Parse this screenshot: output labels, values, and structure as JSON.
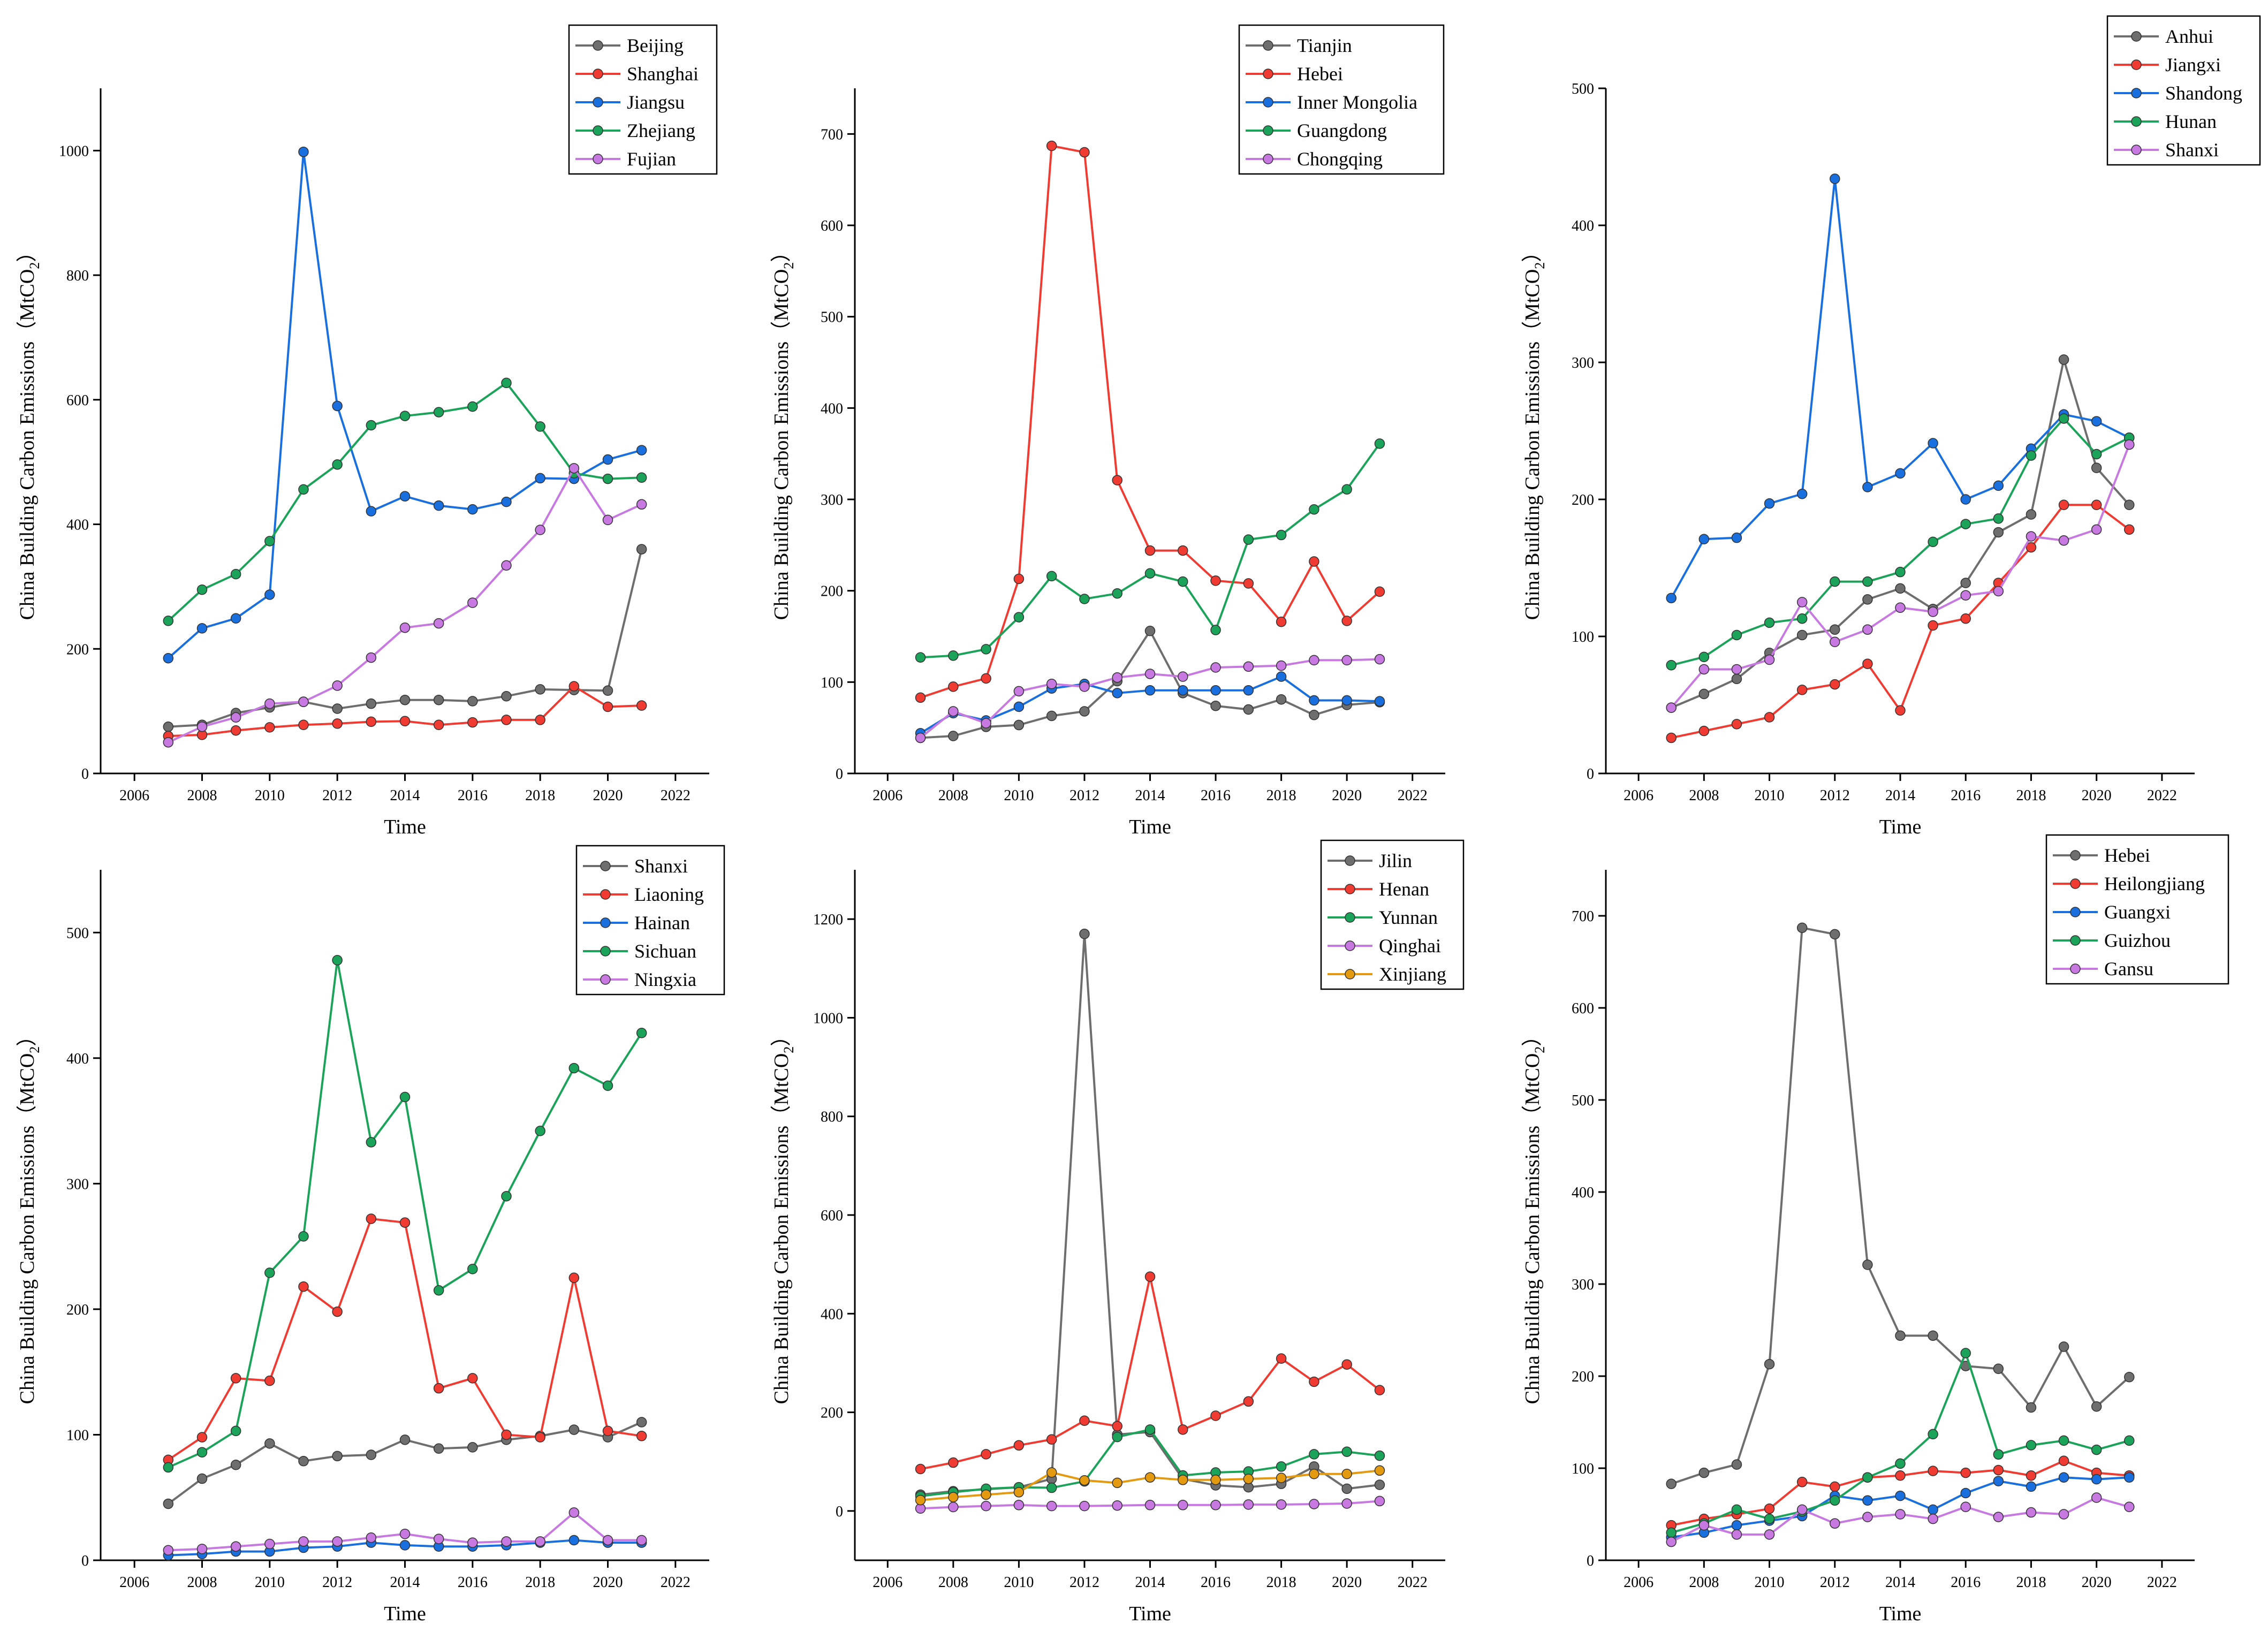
{
  "chart_data": [
    {
      "type": "line",
      "xlabel": "Time",
      "ylabel": "China Building Carbon Emissions（MtCO",
      "ylabel_sub": "2",
      "ylabel_close": "）",
      "xlim": [
        2005,
        2023
      ],
      "ylim": [
        0,
        1100
      ],
      "xticks": [
        2006,
        2008,
        2010,
        2012,
        2014,
        2016,
        2018,
        2020,
        2022
      ],
      "yticks": [
        0,
        200,
        400,
        600,
        800,
        1000
      ],
      "legend_position": "top-right",
      "x": [
        2007,
        2008,
        2009,
        2010,
        2011,
        2012,
        2013,
        2014,
        2015,
        2016,
        2017,
        2018,
        2019,
        2020,
        2021
      ],
      "series": [
        {
          "name": "Beijing",
          "color": "#6e6e6e",
          "values": [
            75,
            78,
            97,
            106,
            115,
            104,
            112,
            118,
            118,
            116,
            124,
            135,
            134,
            133,
            360
          ]
        },
        {
          "name": "Shanghai",
          "color": "#f03b32",
          "values": [
            60,
            62,
            69,
            74,
            78,
            80,
            83,
            84,
            78,
            82,
            86,
            86,
            140,
            107,
            109
          ]
        },
        {
          "name": "Jiangsu",
          "color": "#1a6fdf",
          "values": [
            185,
            233,
            249,
            287,
            998,
            590,
            421,
            445,
            430,
            424,
            436,
            474,
            473,
            504,
            519
          ]
        },
        {
          "name": "Zhejiang",
          "color": "#1ba35a",
          "values": [
            245,
            295,
            320,
            373,
            456,
            496,
            559,
            574,
            580,
            589,
            627,
            557,
            482,
            473,
            475
          ]
        },
        {
          "name": "Fujian",
          "color": "#c779e1",
          "values": [
            50,
            75,
            90,
            112,
            115,
            141,
            186,
            234,
            241,
            274,
            334,
            391,
            490,
            407,
            432
          ]
        }
      ]
    },
    {
      "type": "line",
      "xlabel": "Time",
      "ylabel": "China Building Carbon Emissions（MtCO",
      "ylabel_sub": "2",
      "ylabel_close": "）",
      "xlim": [
        2005,
        2023
      ],
      "ylim": [
        0,
        750
      ],
      "xticks": [
        2006,
        2008,
        2010,
        2012,
        2014,
        2016,
        2018,
        2020,
        2022
      ],
      "yticks": [
        0,
        100,
        200,
        300,
        400,
        500,
        600,
        700
      ],
      "legend_position": "top-right",
      "x": [
        2007,
        2008,
        2009,
        2010,
        2011,
        2012,
        2013,
        2014,
        2015,
        2016,
        2017,
        2018,
        2019,
        2020,
        2021
      ],
      "series": [
        {
          "name": "Tianjin",
          "color": "#6e6e6e",
          "values": [
            39,
            41,
            51,
            53,
            63,
            68,
            101,
            156,
            88,
            74,
            70,
            81,
            64,
            75,
            78
          ]
        },
        {
          "name": "Hebei",
          "color": "#f03b32",
          "values": [
            83,
            95,
            104,
            213,
            687,
            680,
            321,
            244,
            244,
            211,
            208,
            166,
            232,
            167,
            199
          ]
        },
        {
          "name": "Inner Mongolia",
          "color": "#1a6fdf",
          "values": [
            44,
            66,
            58,
            73,
            93,
            98,
            88,
            91,
            91,
            91,
            91,
            106,
            80,
            80,
            79
          ]
        },
        {
          "name": "Guangdong",
          "color": "#1ba35a",
          "values": [
            127,
            129,
            136,
            171,
            216,
            191,
            197,
            219,
            210,
            157,
            256,
            261,
            289,
            311,
            361
          ]
        },
        {
          "name": "Chongqing",
          "color": "#c779e1",
          "values": [
            39,
            68,
            55,
            90,
            98,
            95,
            105,
            109,
            106,
            116,
            117,
            118,
            124,
            124,
            125
          ]
        }
      ]
    },
    {
      "type": "line",
      "xlabel": "Time",
      "ylabel": "China Building Carbon Emissions（MtCO",
      "ylabel_sub": "2",
      "ylabel_close": "）",
      "xlim": [
        2005,
        2023
      ],
      "ylim": [
        0,
        500
      ],
      "xticks": [
        2006,
        2008,
        2010,
        2012,
        2014,
        2016,
        2018,
        2020,
        2022
      ],
      "yticks": [
        0,
        100,
        200,
        300,
        400,
        500
      ],
      "legend_position": "top-right",
      "x": [
        2007,
        2008,
        2009,
        2010,
        2011,
        2012,
        2013,
        2014,
        2015,
        2016,
        2017,
        2018,
        2019,
        2020,
        2021
      ],
      "series": [
        {
          "name": "Anhui",
          "color": "#6e6e6e",
          "values": [
            48,
            58,
            69,
            88,
            101,
            105,
            127,
            135,
            120,
            139,
            176,
            189,
            302,
            223,
            196
          ]
        },
        {
          "name": "Jiangxi",
          "color": "#f03b32",
          "values": [
            26,
            31,
            36,
            41,
            61,
            65,
            80,
            46,
            108,
            113,
            139,
            165,
            196,
            196,
            178
          ]
        },
        {
          "name": "Shandong",
          "color": "#1a6fdf",
          "values": [
            128,
            171,
            172,
            197,
            204,
            434,
            209,
            219,
            241,
            200,
            210,
            237,
            262,
            257,
            245
          ]
        },
        {
          "name": "Hunan",
          "color": "#1ba35a",
          "values": [
            79,
            85,
            101,
            110,
            113,
            140,
            140,
            147,
            169,
            182,
            186,
            232,
            259,
            233,
            245
          ]
        },
        {
          "name": "Shanxi",
          "color": "#c779e1",
          "values": [
            48,
            76,
            76,
            83,
            125,
            96,
            105,
            121,
            118,
            130,
            133,
            173,
            170,
            178,
            240
          ]
        }
      ]
    },
    {
      "type": "line",
      "xlabel": "Time",
      "ylabel": "China Building Carbon Emissions（MtCO",
      "ylabel_sub": "2",
      "ylabel_close": "）",
      "xlim": [
        2005,
        2023
      ],
      "ylim": [
        0,
        550
      ],
      "xticks": [
        2006,
        2008,
        2010,
        2012,
        2014,
        2016,
        2018,
        2020,
        2022
      ],
      "yticks": [
        0,
        100,
        200,
        300,
        400,
        500
      ],
      "legend_position": "top-right",
      "x": [
        2007,
        2008,
        2009,
        2010,
        2011,
        2012,
        2013,
        2014,
        2015,
        2016,
        2017,
        2018,
        2019,
        2020,
        2021
      ],
      "series": [
        {
          "name": "Shanxi",
          "color": "#6e6e6e",
          "values": [
            45,
            65,
            76,
            93,
            79,
            83,
            84,
            96,
            89,
            90,
            96,
            99,
            104,
            98,
            110
          ]
        },
        {
          "name": "Liaoning",
          "color": "#f03b32",
          "values": [
            80,
            98,
            145,
            143,
            218,
            198,
            272,
            269,
            137,
            145,
            100,
            98,
            225,
            103,
            99
          ]
        },
        {
          "name": "Hainan",
          "color": "#1a6fdf",
          "values": [
            4,
            5,
            7,
            7,
            10,
            11,
            14,
            12,
            11,
            11,
            12,
            14,
            16,
            14,
            14
          ]
        },
        {
          "name": "Sichuan",
          "color": "#1ba35a",
          "values": [
            74,
            86,
            103,
            229,
            258,
            478,
            333,
            369,
            215,
            232,
            290,
            342,
            392,
            378,
            420
          ]
        },
        {
          "name": "Ningxia",
          "color": "#c779e1",
          "values": [
            8,
            9,
            11,
            13,
            15,
            15,
            18,
            21,
            17,
            14,
            15,
            15,
            38,
            16,
            16
          ]
        }
      ]
    },
    {
      "type": "line",
      "xlabel": "Time",
      "ylabel": "China Building Carbon Emissions（MtCO",
      "ylabel_sub": "2",
      "ylabel_close": "）",
      "xlim": [
        2005,
        2023
      ],
      "ylim": [
        -100,
        1300
      ],
      "xticks": [
        2006,
        2008,
        2010,
        2012,
        2014,
        2016,
        2018,
        2020,
        2022
      ],
      "yticks": [
        0,
        200,
        400,
        600,
        800,
        1000,
        1200
      ],
      "legend_position": "top-right",
      "x": [
        2007,
        2008,
        2009,
        2010,
        2011,
        2012,
        2013,
        2014,
        2015,
        2016,
        2017,
        2018,
        2019,
        2020,
        2021
      ],
      "series": [
        {
          "name": "Jilin",
          "color": "#6e6e6e",
          "values": [
            33,
            40,
            44,
            48,
            65,
            1170,
            155,
            160,
            65,
            52,
            48,
            55,
            90,
            45,
            53
          ]
        },
        {
          "name": "Henan",
          "color": "#f03b32",
          "values": [
            85,
            98,
            115,
            133,
            145,
            183,
            172,
            475,
            165,
            193,
            222,
            309,
            262,
            297,
            245
          ]
        },
        {
          "name": "Yunnan",
          "color": "#1ba35a",
          "values": [
            30,
            38,
            45,
            48,
            47,
            60,
            150,
            165,
            72,
            78,
            80,
            90,
            115,
            120,
            112
          ]
        },
        {
          "name": "Qinghai",
          "color": "#c779e1",
          "values": [
            5,
            8,
            10,
            12,
            10,
            10,
            11,
            12,
            12,
            12,
            13,
            13,
            14,
            15,
            20
          ]
        },
        {
          "name": "Xinjiang",
          "color": "#e39a10",
          "values": [
            22,
            28,
            33,
            38,
            78,
            62,
            57,
            68,
            63,
            63,
            65,
            67,
            75,
            75,
            82
          ]
        }
      ]
    },
    {
      "type": "line",
      "xlabel": "Time",
      "ylabel": "China Building Carbon Emissions（MtCO",
      "ylabel_sub": "2",
      "ylabel_close": "）",
      "xlim": [
        2005,
        2023
      ],
      "ylim": [
        0,
        750
      ],
      "xticks": [
        2006,
        2008,
        2010,
        2012,
        2014,
        2016,
        2018,
        2020,
        2022
      ],
      "yticks": [
        0,
        100,
        200,
        300,
        400,
        500,
        600,
        700
      ],
      "legend_position": "top-right",
      "x": [
        2007,
        2008,
        2009,
        2010,
        2011,
        2012,
        2013,
        2014,
        2015,
        2016,
        2017,
        2018,
        2019,
        2020,
        2021
      ],
      "series": [
        {
          "name": "Hebei",
          "color": "#6e6e6e",
          "values": [
            83,
            95,
            104,
            213,
            687,
            680,
            321,
            244,
            244,
            211,
            208,
            166,
            232,
            167,
            199
          ]
        },
        {
          "name": "Heilongjiang",
          "color": "#f03b32",
          "values": [
            38,
            45,
            50,
            56,
            85,
            80,
            90,
            92,
            97,
            95,
            98,
            92,
            108,
            95,
            92
          ]
        },
        {
          "name": "Guangxi",
          "color": "#1a6fdf",
          "values": [
            25,
            30,
            38,
            43,
            48,
            70,
            65,
            70,
            55,
            73,
            86,
            80,
            90,
            88,
            90
          ]
        },
        {
          "name": "Guizhou",
          "color": "#1ba35a",
          "values": [
            30,
            40,
            55,
            45,
            53,
            65,
            90,
            105,
            137,
            225,
            115,
            125,
            130,
            120,
            130
          ]
        },
        {
          "name": "Gansu",
          "color": "#c779e1",
          "values": [
            20,
            38,
            28,
            28,
            55,
            40,
            47,
            50,
            45,
            58,
            47,
            52,
            50,
            68,
            58
          ]
        }
      ]
    }
  ]
}
